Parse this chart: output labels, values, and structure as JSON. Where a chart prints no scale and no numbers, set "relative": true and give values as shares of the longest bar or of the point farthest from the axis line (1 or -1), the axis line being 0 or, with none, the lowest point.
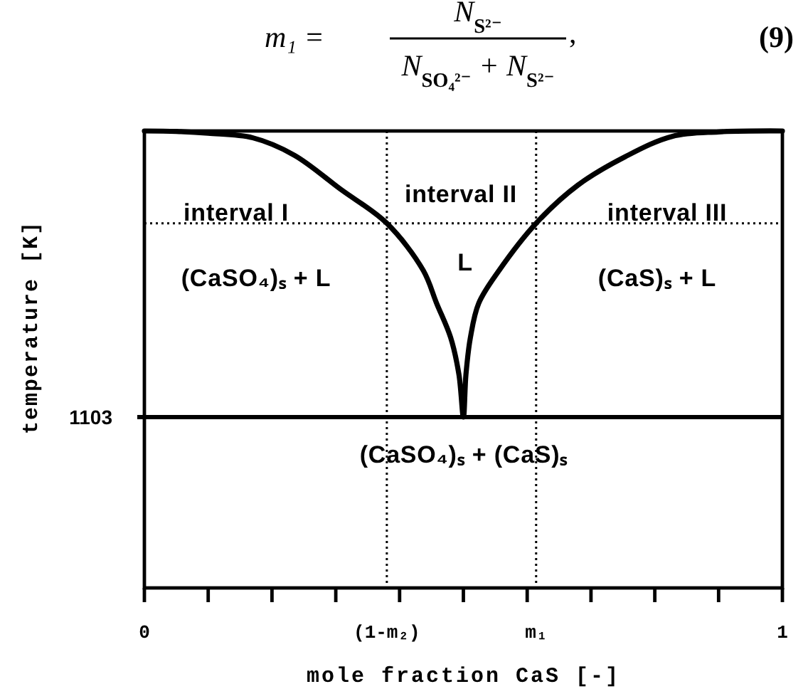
{
  "chart_data": {
    "type": "line",
    "relative": true,
    "xlabel": "mole fraction CaS [-]",
    "ylabel": "temperature [K]",
    "xlim": [
      0,
      1
    ],
    "xticks": [
      0,
      {
        "value": 0.1,
        "label": null
      },
      {
        "value": 0.2,
        "label": null
      },
      {
        "value": 0.3,
        "label": null
      },
      {
        "value": 0.4,
        "label": null
      },
      {
        "value": 0.5,
        "label": null
      },
      {
        "value": 0.6,
        "label": null
      },
      {
        "value": 0.7,
        "label": null
      },
      {
        "value": 0.8,
        "label": null
      },
      {
        "value": 0.9,
        "label": null
      },
      1
    ],
    "series": [
      {
        "color": "#000000",
        "x": [
          0,
          0.05,
          0.1,
          0.17,
          0.235,
          0.308,
          0.38,
          0.437,
          0.458,
          0.48,
          0.493,
          0.5,
          0.504,
          0.511,
          0.524,
          0.556,
          0.614,
          0.68,
          0.754,
          0.827,
          0.9,
          1
        ],
        "values": [
          1,
          0.999,
          0.995,
          0.985,
          0.947,
          0.872,
          0.798,
          0.695,
          0.623,
          0.548,
          0.467,
          0.374,
          0.467,
          0.548,
          0.623,
          0.695,
          0.798,
          0.882,
          0.944,
          0.988,
          0.998,
          1
        ]
      }
    ],
    "ref_lines": [
      {
        "axis": "y",
        "value": 0.374,
        "color": "#000000",
        "line_style": "solid"
      },
      {
        "axis": "y",
        "value": 0.798,
        "color": "#000000",
        "line_style": "dotted"
      },
      {
        "axis": "x",
        "value": 0.38,
        "label": "(1-m₂)",
        "color": "#000000",
        "line_style": "dotted"
      },
      {
        "axis": "x",
        "value": 0.614,
        "label": "m₁",
        "color": "#000000",
        "line_style": "dotted"
      }
    ],
    "annotations": [
      "m₁ =",
      "N$_{S²⁻}$",
      "N$_{SO₄²⁻}$ + N$_{S²⁻}$",
      ",",
      "(9)",
      "interval I",
      "interval II",
      "interval III",
      "(CaSO₄)ₛ + L",
      "L",
      "(CaS)ₛ + L",
      "(CaSO₄)ₛ + (CaS)ₛ",
      "1103"
    ]
  }
}
